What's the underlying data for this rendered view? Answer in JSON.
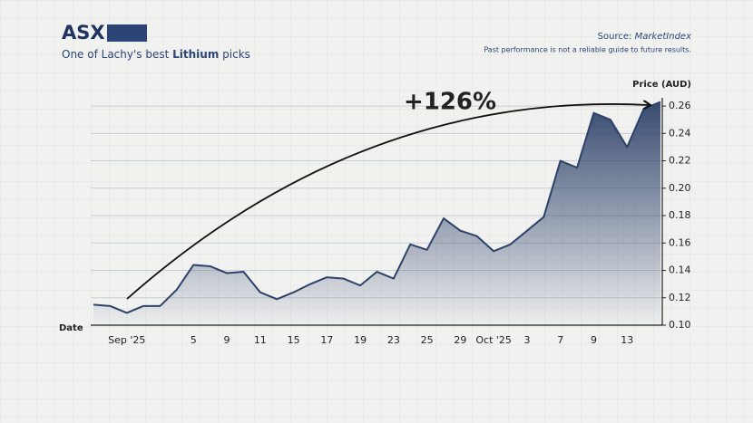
{
  "header": {
    "title": "ASX:",
    "subtitle_start": "One of Lachy's best",
    "subtitle_bold": "Lithium",
    "subtitle_end": "picks",
    "source_label": "Source:",
    "source_name": "MarketIndex",
    "disclaimer": "Past performance is not a reliable guide to future results."
  },
  "chart_data": {
    "type": "area",
    "x_label": "Date",
    "y_label": "Price (AUD)",
    "annotation": "+126%",
    "categories": [
      null,
      null,
      "Sep '25",
      null,
      null,
      null,
      "5",
      null,
      "9",
      null,
      "11",
      null,
      "15",
      null,
      "17",
      null,
      "19",
      null,
      "23",
      null,
      "25",
      null,
      "29",
      null,
      "Oct '25",
      null,
      "3",
      null,
      "7",
      null,
      "9",
      null,
      "13",
      null,
      null
    ],
    "values": [
      0.115,
      0.114,
      0.109,
      0.114,
      0.114,
      0.126,
      0.144,
      0.143,
      0.138,
      0.139,
      0.124,
      0.119,
      0.124,
      0.13,
      0.135,
      0.134,
      0.129,
      0.139,
      0.134,
      0.159,
      0.155,
      0.178,
      0.169,
      0.165,
      0.154,
      0.159,
      0.169,
      0.179,
      0.22,
      0.215,
      0.255,
      0.25,
      0.23,
      0.258,
      0.263
    ],
    "color": "#2d4269",
    "ylim": [
      0.1,
      0.266
    ],
    "yticks": [
      {
        "value": 0.1,
        "label": "0.10"
      },
      0.12,
      0.14,
      0.16,
      0.18,
      {
        "value": 0.2,
        "label": "0.20"
      },
      0.22,
      0.24,
      0.26
    ],
    "grid": true
  }
}
